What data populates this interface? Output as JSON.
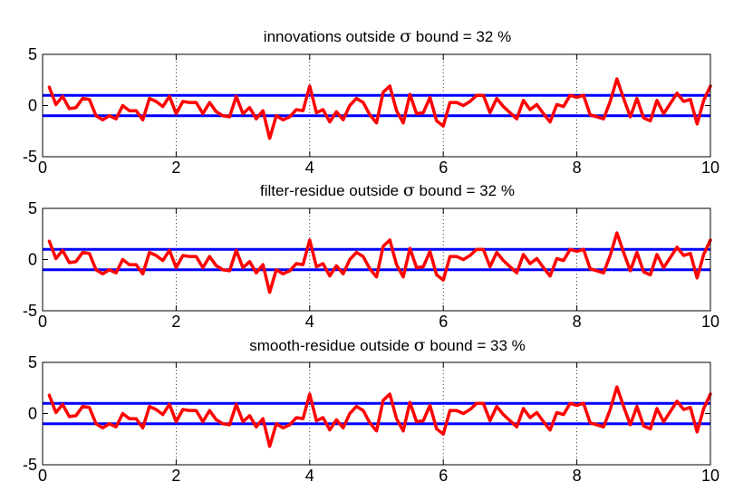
{
  "chart_data": [
    {
      "type": "line",
      "title_prefix": "innovations outside",
      "title_symbol": "σ",
      "title_suffix": "bound = 32 %",
      "xlim": [
        0,
        10
      ],
      "ylim": [
        -5,
        5
      ],
      "xticks": [
        "0",
        "2",
        "4",
        "6",
        "8",
        "10"
      ],
      "yticks": [
        "5",
        "0",
        "-5"
      ],
      "grid_x": "dotted",
      "bounds": [
        1,
        -1
      ],
      "bound_color": "#0000ff",
      "series_color": "#ff0000",
      "x": [
        0.1,
        0.2,
        0.3,
        0.4,
        0.5,
        0.6,
        0.7,
        0.8,
        0.9,
        1.0,
        1.1,
        1.2,
        1.3,
        1.4,
        1.5,
        1.6,
        1.7,
        1.8,
        1.9,
        2.0,
        2.1,
        2.2,
        2.3,
        2.4,
        2.5,
        2.6,
        2.7,
        2.8,
        2.9,
        3.0,
        3.1,
        3.2,
        3.3,
        3.4,
        3.5,
        3.6,
        3.7,
        3.8,
        3.9,
        4.0,
        4.1,
        4.2,
        4.3,
        4.4,
        4.5,
        4.6,
        4.7,
        4.8,
        4.9,
        5.0,
        5.1,
        5.2,
        5.3,
        5.4,
        5.5,
        5.6,
        5.7,
        5.8,
        5.9,
        6.0,
        6.1,
        6.2,
        6.3,
        6.4,
        6.5,
        6.6,
        6.7,
        6.8,
        6.9,
        7.0,
        7.1,
        7.2,
        7.3,
        7.4,
        7.5,
        7.6,
        7.7,
        7.8,
        7.9,
        8.0,
        8.1,
        8.2,
        8.3,
        8.4,
        8.5,
        8.6,
        8.7,
        8.8,
        8.9,
        9.0,
        9.1,
        9.2,
        9.3,
        9.4,
        9.5,
        9.6,
        9.7,
        9.8,
        9.9,
        10.0
      ],
      "y": [
        1.8,
        0.1,
        0.9,
        -0.3,
        -0.2,
        0.7,
        0.6,
        -1.0,
        -1.4,
        -1.0,
        -1.3,
        0.0,
        -0.5,
        -0.5,
        -1.4,
        0.7,
        0.4,
        -0.1,
        0.9,
        -0.8,
        0.4,
        0.3,
        0.3,
        -0.8,
        0.3,
        -0.6,
        -1.0,
        -1.1,
        0.9,
        -0.8,
        -0.2,
        -1.3,
        -0.5,
        -3.2,
        -1.0,
        -1.4,
        -1.1,
        -0.4,
        -0.5,
        1.9,
        -0.7,
        -0.4,
        -1.6,
        -0.6,
        -1.4,
        0.0,
        0.7,
        0.3,
        -0.9,
        -1.7,
        1.3,
        1.9,
        -0.5,
        -1.7,
        1.1,
        -0.8,
        -0.7,
        0.8,
        -1.5,
        -2.0,
        0.3,
        0.3,
        0.0,
        0.4,
        1.0,
        1.0,
        -0.7,
        0.7,
        -0.1,
        -0.7,
        -1.3,
        0.5,
        -0.4,
        0.1,
        -0.8,
        -1.6,
        0.1,
        -0.1,
        1.0,
        0.8,
        1.0,
        -0.9,
        -1.1,
        -1.3,
        0.4,
        2.6,
        0.7,
        -1.1,
        0.7,
        -1.2,
        -1.5,
        0.5,
        -0.8,
        0.2,
        1.2,
        0.4,
        0.6,
        -1.8,
        0.5,
        1.9
      ]
    },
    {
      "type": "line",
      "title_prefix": "filter-residue outside",
      "title_symbol": "σ",
      "title_suffix": "bound = 32 %",
      "xlim": [
        0,
        10
      ],
      "ylim": [
        -5,
        5
      ],
      "xticks": [
        "0",
        "2",
        "4",
        "6",
        "8",
        "10"
      ],
      "yticks": [
        "5",
        "0",
        "-5"
      ],
      "grid_x": "dotted",
      "bounds": [
        1,
        -1
      ],
      "bound_color": "#0000ff",
      "series_color": "#ff0000",
      "x": [
        0.1,
        0.2,
        0.3,
        0.4,
        0.5,
        0.6,
        0.7,
        0.8,
        0.9,
        1.0,
        1.1,
        1.2,
        1.3,
        1.4,
        1.5,
        1.6,
        1.7,
        1.8,
        1.9,
        2.0,
        2.1,
        2.2,
        2.3,
        2.4,
        2.5,
        2.6,
        2.7,
        2.8,
        2.9,
        3.0,
        3.1,
        3.2,
        3.3,
        3.4,
        3.5,
        3.6,
        3.7,
        3.8,
        3.9,
        4.0,
        4.1,
        4.2,
        4.3,
        4.4,
        4.5,
        4.6,
        4.7,
        4.8,
        4.9,
        5.0,
        5.1,
        5.2,
        5.3,
        5.4,
        5.5,
        5.6,
        5.7,
        5.8,
        5.9,
        6.0,
        6.1,
        6.2,
        6.3,
        6.4,
        6.5,
        6.6,
        6.7,
        6.8,
        6.9,
        7.0,
        7.1,
        7.2,
        7.3,
        7.4,
        7.5,
        7.6,
        7.7,
        7.8,
        7.9,
        8.0,
        8.1,
        8.2,
        8.3,
        8.4,
        8.5,
        8.6,
        8.7,
        8.8,
        8.9,
        9.0,
        9.1,
        9.2,
        9.3,
        9.4,
        9.5,
        9.6,
        9.7,
        9.8,
        9.9,
        10.0
      ],
      "y": [
        1.8,
        0.1,
        0.9,
        -0.3,
        -0.2,
        0.7,
        0.6,
        -1.0,
        -1.4,
        -1.0,
        -1.3,
        0.0,
        -0.5,
        -0.5,
        -1.4,
        0.7,
        0.4,
        -0.1,
        0.9,
        -0.8,
        0.4,
        0.3,
        0.3,
        -0.8,
        0.3,
        -0.6,
        -1.0,
        -1.1,
        0.9,
        -0.8,
        -0.2,
        -1.3,
        -0.5,
        -3.2,
        -1.0,
        -1.4,
        -1.1,
        -0.4,
        -0.5,
        1.9,
        -0.7,
        -0.4,
        -1.6,
        -0.6,
        -1.4,
        0.0,
        0.7,
        0.3,
        -0.9,
        -1.7,
        1.3,
        1.9,
        -0.5,
        -1.7,
        1.1,
        -0.8,
        -0.7,
        0.8,
        -1.5,
        -2.0,
        0.3,
        0.3,
        0.0,
        0.4,
        1.0,
        1.0,
        -0.7,
        0.7,
        -0.1,
        -0.7,
        -1.3,
        0.5,
        -0.4,
        0.1,
        -0.8,
        -1.6,
        0.1,
        -0.1,
        1.0,
        0.8,
        1.0,
        -0.9,
        -1.1,
        -1.3,
        0.4,
        2.6,
        0.7,
        -1.1,
        0.7,
        -1.2,
        -1.5,
        0.5,
        -0.8,
        0.2,
        1.2,
        0.4,
        0.6,
        -1.8,
        0.5,
        1.9
      ]
    },
    {
      "type": "line",
      "title_prefix": "smooth-residue outside",
      "title_symbol": "σ",
      "title_suffix": "bound = 33 %",
      "xlim": [
        0,
        10
      ],
      "ylim": [
        -5,
        5
      ],
      "xticks": [
        "0",
        "2",
        "4",
        "6",
        "8",
        "10"
      ],
      "yticks": [
        "5",
        "0",
        "-5"
      ],
      "grid_x": "dotted",
      "bounds": [
        1,
        -1
      ],
      "bound_color": "#0000ff",
      "series_color": "#ff0000",
      "x": [
        0.1,
        0.2,
        0.3,
        0.4,
        0.5,
        0.6,
        0.7,
        0.8,
        0.9,
        1.0,
        1.1,
        1.2,
        1.3,
        1.4,
        1.5,
        1.6,
        1.7,
        1.8,
        1.9,
        2.0,
        2.1,
        2.2,
        2.3,
        2.4,
        2.5,
        2.6,
        2.7,
        2.8,
        2.9,
        3.0,
        3.1,
        3.2,
        3.3,
        3.4,
        3.5,
        3.6,
        3.7,
        3.8,
        3.9,
        4.0,
        4.1,
        4.2,
        4.3,
        4.4,
        4.5,
        4.6,
        4.7,
        4.8,
        4.9,
        5.0,
        5.1,
        5.2,
        5.3,
        5.4,
        5.5,
        5.6,
        5.7,
        5.8,
        5.9,
        6.0,
        6.1,
        6.2,
        6.3,
        6.4,
        6.5,
        6.6,
        6.7,
        6.8,
        6.9,
        7.0,
        7.1,
        7.2,
        7.3,
        7.4,
        7.5,
        7.6,
        7.7,
        7.8,
        7.9,
        8.0,
        8.1,
        8.2,
        8.3,
        8.4,
        8.5,
        8.6,
        8.7,
        8.8,
        8.9,
        9.0,
        9.1,
        9.2,
        9.3,
        9.4,
        9.5,
        9.6,
        9.7,
        9.8,
        9.9,
        10.0
      ],
      "y": [
        1.8,
        0.1,
        0.9,
        -0.3,
        -0.2,
        0.7,
        0.6,
        -1.0,
        -1.4,
        -1.0,
        -1.3,
        0.0,
        -0.5,
        -0.5,
        -1.4,
        0.7,
        0.4,
        -0.1,
        0.9,
        -0.8,
        0.4,
        0.3,
        0.3,
        -0.8,
        0.3,
        -0.6,
        -1.0,
        -1.1,
        0.9,
        -0.8,
        -0.2,
        -1.3,
        -0.5,
        -3.2,
        -1.0,
        -1.4,
        -1.1,
        -0.4,
        -0.5,
        1.9,
        -0.7,
        -0.4,
        -1.6,
        -0.6,
        -1.4,
        0.0,
        0.7,
        0.3,
        -0.9,
        -1.7,
        1.3,
        1.9,
        -0.5,
        -1.7,
        1.1,
        -0.8,
        -0.7,
        0.8,
        -1.5,
        -2.0,
        0.3,
        0.3,
        0.0,
        0.4,
        1.0,
        1.0,
        -0.7,
        0.7,
        -0.1,
        -0.7,
        -1.3,
        0.5,
        -0.4,
        0.1,
        -0.8,
        -1.6,
        0.1,
        -0.1,
        1.0,
        0.8,
        1.0,
        -0.9,
        -1.1,
        -1.3,
        0.4,
        2.6,
        0.7,
        -1.1,
        0.7,
        -1.2,
        -1.5,
        0.5,
        -0.8,
        0.2,
        1.2,
        0.4,
        0.6,
        -1.8,
        0.5,
        1.9
      ]
    }
  ]
}
